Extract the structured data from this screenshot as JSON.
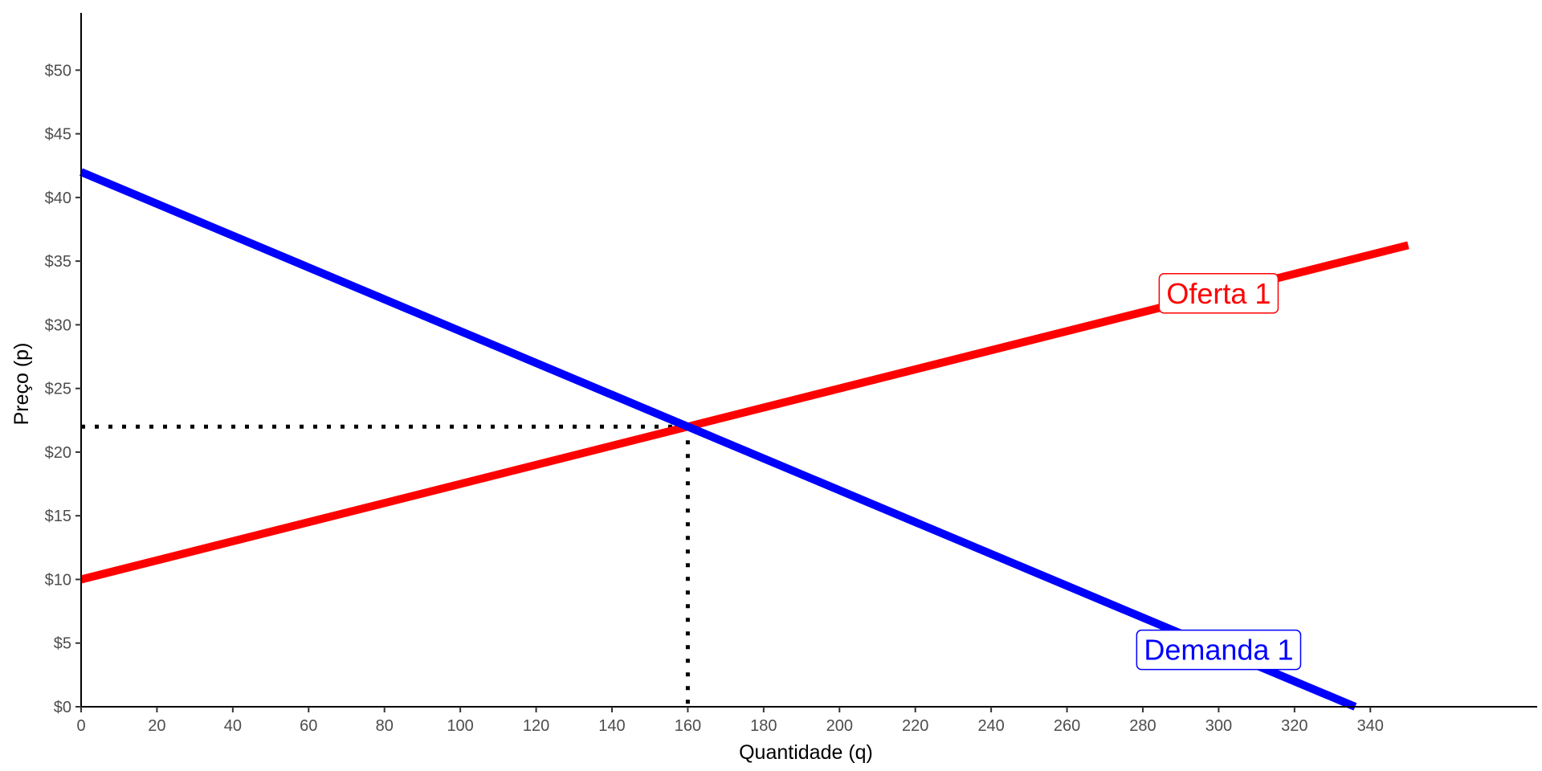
{
  "chart_data": {
    "type": "line",
    "title": "",
    "xlabel": "Quantidade (q)",
    "ylabel": "Preço (p)",
    "xlim": [
      0,
      384
    ],
    "ylim": [
      0,
      54.5
    ],
    "x_ticks": [
      0,
      20,
      40,
      60,
      80,
      100,
      120,
      140,
      160,
      180,
      200,
      220,
      240,
      260,
      280,
      300,
      320,
      340
    ],
    "x_tick_labels": [
      "0",
      "20",
      "40",
      "60",
      "80",
      "100",
      "120",
      "140",
      "160",
      "180",
      "200",
      "220",
      "240",
      "260",
      "280",
      "300",
      "320",
      "340"
    ],
    "y_ticks": [
      0,
      5,
      10,
      15,
      20,
      25,
      30,
      35,
      40,
      45,
      50
    ],
    "y_tick_labels": [
      "$0",
      "$5",
      "$10",
      "$15",
      "$20",
      "$25",
      "$30",
      "$35",
      "$40",
      "$45",
      "$50"
    ],
    "grid": false,
    "legend": "none",
    "series": [
      {
        "name": "Oferta 1",
        "color": "#ff0000",
        "x": [
          0,
          350
        ],
        "y": [
          10,
          36.25
        ],
        "label_at": [
          300,
          32.5
        ]
      },
      {
        "name": "Demanda 1",
        "color": "#0000ff",
        "x": [
          0,
          336
        ],
        "y": [
          42,
          0
        ],
        "label_at": [
          300,
          4.5
        ]
      }
    ],
    "equilibrium": {
      "q": 160,
      "p": 22
    }
  }
}
